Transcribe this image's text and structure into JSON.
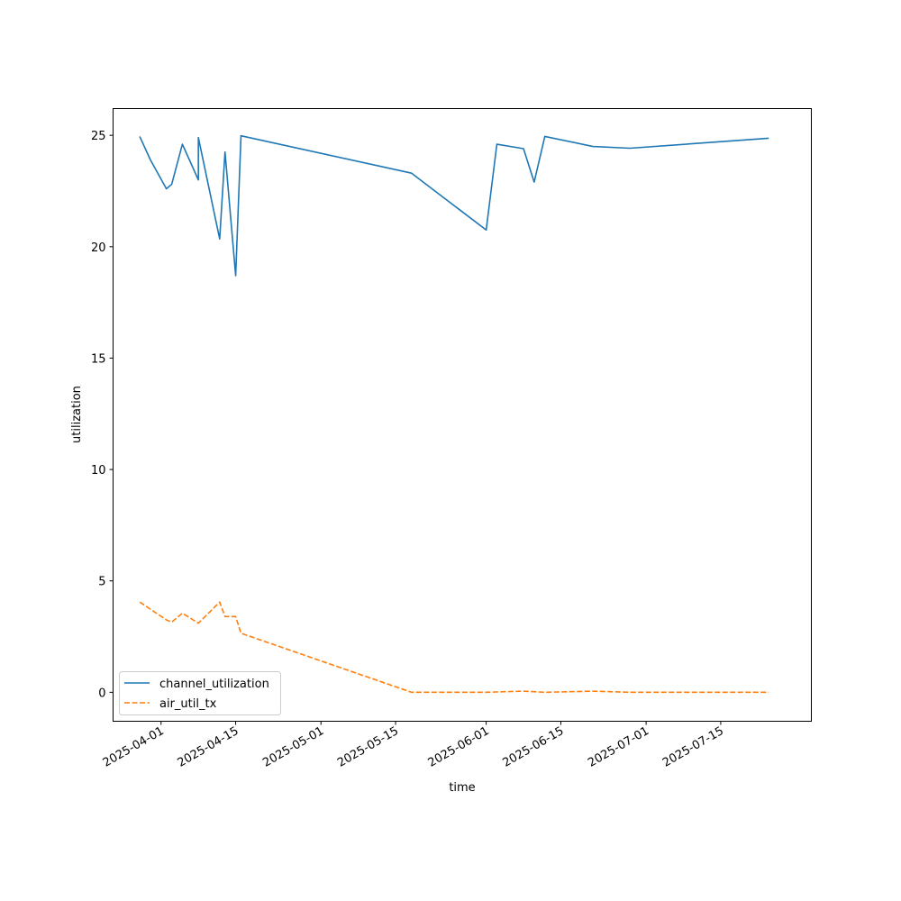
{
  "chart_data": {
    "type": "line",
    "title": "",
    "xlabel": "time",
    "ylabel": "utilization",
    "xlim": [
      "2025-03-23",
      "2025-08-01"
    ],
    "ylim": [
      -1.3,
      26.2
    ],
    "x_ticks": [
      "2025-04-01",
      "2025-04-15",
      "2025-05-01",
      "2025-05-15",
      "2025-06-01",
      "2025-06-15",
      "2025-07-01",
      "2025-07-15"
    ],
    "y_ticks": [
      0,
      5,
      10,
      15,
      20,
      25
    ],
    "grid": false,
    "legend_position": "lower-left",
    "series": [
      {
        "name": "channel_utilization",
        "color": "#1f77b4",
        "dash": "solid",
        "points": [
          [
            "2025-03-28",
            24.95
          ],
          [
            "2025-03-30",
            23.9
          ],
          [
            "2025-04-02",
            22.6
          ],
          [
            "2025-04-03",
            22.8
          ],
          [
            "2025-04-05",
            24.6
          ],
          [
            "2025-04-08",
            23.0
          ],
          [
            "2025-04-08",
            24.9
          ],
          [
            "2025-04-12",
            20.35
          ],
          [
            "2025-04-13",
            24.25
          ],
          [
            "2025-04-15",
            18.7
          ],
          [
            "2025-04-16",
            24.98
          ],
          [
            "2025-05-18",
            23.3
          ],
          [
            "2025-06-01",
            20.75
          ],
          [
            "2025-06-03",
            24.6
          ],
          [
            "2025-06-08",
            24.4
          ],
          [
            "2025-06-10",
            22.9
          ],
          [
            "2025-06-12",
            24.95
          ],
          [
            "2025-06-21",
            24.5
          ],
          [
            "2025-06-28",
            24.42
          ],
          [
            "2025-07-24",
            24.87
          ]
        ]
      },
      {
        "name": "air_util_tx",
        "color": "#ff7f0e",
        "dash": "dashed",
        "points": [
          [
            "2025-03-28",
            4.05
          ],
          [
            "2025-04-02",
            3.25
          ],
          [
            "2025-04-03",
            3.15
          ],
          [
            "2025-04-05",
            3.55
          ],
          [
            "2025-04-08",
            3.1
          ],
          [
            "2025-04-12",
            4.05
          ],
          [
            "2025-04-13",
            3.4
          ],
          [
            "2025-04-15",
            3.4
          ],
          [
            "2025-04-16",
            2.65
          ],
          [
            "2025-05-18",
            0.0
          ],
          [
            "2025-06-01",
            0.0
          ],
          [
            "2025-06-08",
            0.05
          ],
          [
            "2025-06-12",
            0.0
          ],
          [
            "2025-06-21",
            0.05
          ],
          [
            "2025-06-28",
            0.0
          ],
          [
            "2025-07-24",
            0.0
          ]
        ]
      }
    ]
  }
}
